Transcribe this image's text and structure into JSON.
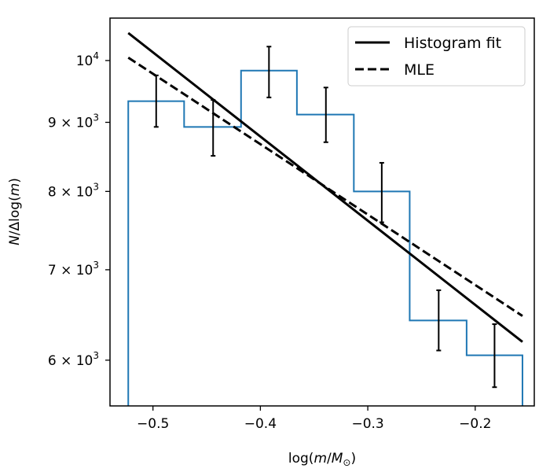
{
  "chart_data": {
    "type": "histogram-with-fits",
    "title": "",
    "xlabel": "log(m/M⊙)",
    "ylabel": "N/Δlog(m)",
    "xlim": [
      -0.54,
      -0.145
    ],
    "ylim": [
      5550,
      10750
    ],
    "yscale": "log",
    "grid": false,
    "x_ticks": [
      {
        "value": -0.5,
        "label": "−0.5"
      },
      {
        "value": -0.4,
        "label": "−0.4"
      },
      {
        "value": -0.3,
        "label": "−0.3"
      },
      {
        "value": -0.2,
        "label": "−0.2"
      }
    ],
    "y_ticks": [
      {
        "value": 6000,
        "base": "6 × 10",
        "exp": "3"
      },
      {
        "value": 7000,
        "base": "7 × 10",
        "exp": "3"
      },
      {
        "value": 8000,
        "base": "8 × 10",
        "exp": "3"
      },
      {
        "value": 9000,
        "base": "9 × 10",
        "exp": "3"
      },
      {
        "value": 10000,
        "base": "10",
        "exp": "4"
      }
    ],
    "histogram": {
      "color": "#1f77b4",
      "bin_edges": [
        -0.523,
        -0.471,
        -0.418,
        -0.366,
        -0.313,
        -0.261,
        -0.208,
        -0.156
      ],
      "values": [
        9330,
        8930,
        9830,
        9120,
        8000,
        6420,
        6050
      ],
      "errorbars": [
        {
          "x": -0.497,
          "low": 8930,
          "high": 9750
        },
        {
          "x": -0.444,
          "low": 8500,
          "high": 9350
        },
        {
          "x": -0.392,
          "low": 9390,
          "high": 10240
        },
        {
          "x": -0.339,
          "low": 8700,
          "high": 9550
        },
        {
          "x": -0.287,
          "low": 7590,
          "high": 8400
        },
        {
          "x": -0.234,
          "low": 6100,
          "high": 6760
        },
        {
          "x": -0.182,
          "low": 5730,
          "high": 6380
        }
      ]
    },
    "series": [
      {
        "name": "Histogram fit",
        "style": "solid",
        "color": "#000000",
        "x": [
          -0.523,
          -0.156
        ],
        "y": [
          10480,
          6190
        ]
      },
      {
        "name": "MLE",
        "style": "dashed",
        "color": "#000000",
        "x": [
          -0.523,
          -0.156
        ],
        "y": [
          10050,
          6470
        ]
      }
    ],
    "legend": {
      "location": "top-right",
      "entries": [
        "Histogram fit",
        "MLE"
      ]
    }
  }
}
